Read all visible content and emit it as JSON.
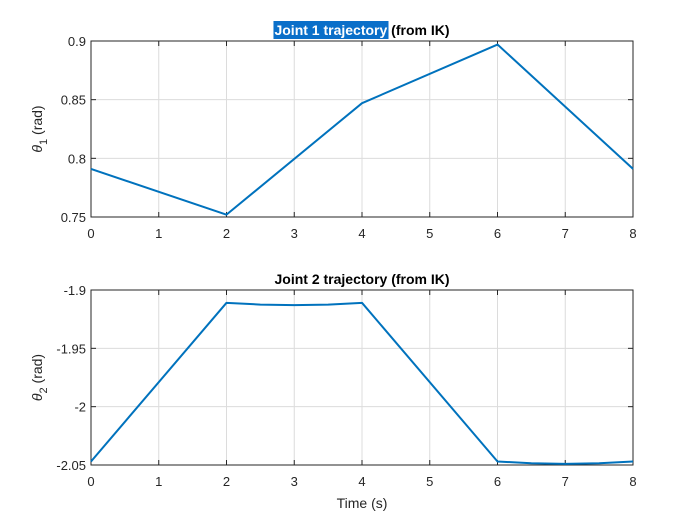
{
  "colors": {
    "series": "#0072BD",
    "title_highlight": "#0a6fc9"
  },
  "chart_data": [
    {
      "type": "line",
      "title_highlighted": "Joint 1 trajectory",
      "title_rest": " (from IK)",
      "xlabel": "",
      "ylabel_symbol": "θ",
      "ylabel_subscript": "1",
      "ylabel_unit": " (rad)",
      "xlim": [
        0,
        8
      ],
      "ylim": [
        0.75,
        0.9
      ],
      "xticks": [
        0,
        1,
        2,
        3,
        4,
        5,
        6,
        7,
        8
      ],
      "yticks": [
        0.75,
        0.8,
        0.85,
        0.9
      ],
      "ytick_labels": [
        "0.75",
        "0.8",
        "0.85",
        "0.9"
      ],
      "grid": true,
      "series": [
        {
          "x": [
            0,
            2,
            4,
            6,
            8
          ],
          "y": [
            0.791,
            0.752,
            0.847,
            0.897,
            0.791
          ]
        }
      ]
    },
    {
      "type": "line",
      "title_highlighted": "",
      "title_rest": "Joint 2 trajectory (from IK)",
      "xlabel": "Time (s)",
      "ylabel_symbol": "θ",
      "ylabel_subscript": "2",
      "ylabel_unit": " (rad)",
      "xlim": [
        0,
        8
      ],
      "ylim": [
        -2.05,
        -1.9
      ],
      "xticks": [
        0,
        1,
        2,
        3,
        4,
        5,
        6,
        7,
        8
      ],
      "yticks": [
        -2.05,
        -2.0,
        -1.95,
        -1.9
      ],
      "ytick_labels": [
        "-2.05",
        "-2",
        "-1.95",
        "-1.9"
      ],
      "grid": true,
      "series": [
        {
          "x": [
            0,
            2,
            2.5,
            3,
            3.5,
            4,
            6,
            6.5,
            7,
            7.5,
            8
          ],
          "y": [
            -2.047,
            -1.911,
            -1.9125,
            -1.913,
            -1.9125,
            -1.911,
            -2.047,
            -2.0485,
            -2.049,
            -2.0485,
            -2.047
          ]
        }
      ]
    }
  ]
}
